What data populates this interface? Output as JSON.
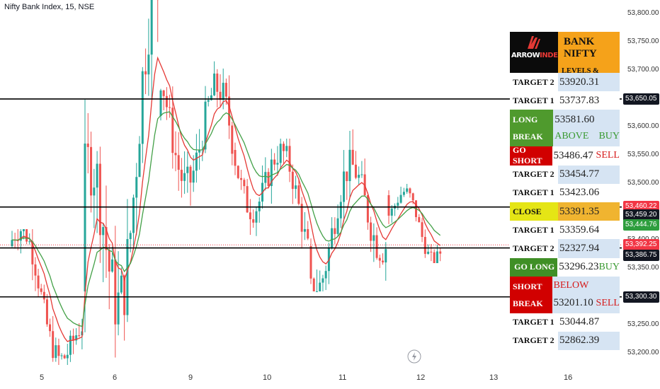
{
  "header": {
    "title": "Nifty Bank Index, 15, NSE"
  },
  "panel": {
    "logo_text_a": "ARROW",
    "logo_text_b": "INDEX",
    "title": "BANK NIFTY",
    "subtitle": "LEVELS & TARGETS",
    "rows": [
      {
        "label": "TARGET 2",
        "value": "53920.31"
      },
      {
        "label": "TARGET 1",
        "value": "53737.83"
      },
      {
        "label_a": "LONG",
        "label_b": "BREAK",
        "value": "53581.60",
        "word": "ABOVE",
        "signal": "BUY"
      },
      {
        "label": "GO SHORT",
        "value": "53486.47",
        "signal": "SELL"
      },
      {
        "label": "TARGET 2",
        "value": "53454.77"
      },
      {
        "label": "TARGET 1",
        "value": "53423.06"
      },
      {
        "label": "CLOSE",
        "value": "53391.35"
      },
      {
        "label": "TARGET 1",
        "value": "53359.64"
      },
      {
        "label": "TARGET 2",
        "value": "52327.94"
      },
      {
        "label": "GO LONG",
        "value": "53296.23",
        "signal": "BUY"
      },
      {
        "label_a": "SHORT",
        "label_b": "BREAK",
        "value": "53201.10",
        "word": "BELOW",
        "signal": "SELL"
      },
      {
        "label": "TARGET 1",
        "value": "53044.87"
      },
      {
        "label": "TARGET 2",
        "value": "52862.39"
      }
    ]
  },
  "price_tags": [
    {
      "text": "53,650.05",
      "bg": "#131722",
      "fg": "#ffffff",
      "price": 53650.05
    },
    {
      "text": "53,460.22",
      "bg": "#f23645",
      "fg": "#ffffff",
      "price": 53460.22
    },
    {
      "text": "53,459.20",
      "bg": "#131722",
      "fg": "#ffffff",
      "price": 53445.0
    },
    {
      "text": "53,444.76",
      "bg": "#2e9e3e",
      "fg": "#ffffff",
      "price": 53428.0
    },
    {
      "text": "53,392.25",
      "bg": "#f23645",
      "fg": "#ffffff",
      "price": 53392.25
    },
    {
      "text": "53,386.75",
      "bg": "#131722",
      "fg": "#ffffff",
      "price": 53374.0
    },
    {
      "text": "53,300.30",
      "bg": "#131722",
      "fg": "#ffffff",
      "price": 53300.3
    }
  ],
  "chart_data": {
    "type": "candlestick",
    "title": "Nifty Bank Index, 15, NSE",
    "y_ticks": [
      "53,800.00",
      "53,750.00",
      "53,700.00",
      "53,650.00",
      "53,600.00",
      "53,550.00",
      "53,500.00",
      "53,450.00",
      "53,400.00",
      "53,350.00",
      "53,300.00",
      "53,250.00",
      "53,200.00"
    ],
    "y_tick_values": [
      53800,
      53750,
      53700,
      53650,
      53600,
      53550,
      53500,
      53450,
      53400,
      53350,
      53300,
      53250,
      53200
    ],
    "ylim": [
      53175,
      53825
    ],
    "x_ticks": [
      "5",
      "6",
      "9",
      "10",
      "11",
      "12",
      "13",
      "16"
    ],
    "x_tick_days": [
      5,
      6,
      9,
      10,
      11,
      12,
      13,
      16
    ],
    "horizontal_levels": [
      53650.05,
      53459.2,
      53386.75,
      53300.3
    ],
    "colors": {
      "up": "#26a69a",
      "down": "#ef5350",
      "ema_fast": "#e53935",
      "ema_slow": "#43a047",
      "level": "#000000"
    },
    "sessions": [
      {
        "day": 5,
        "open": 53390,
        "high": 53420,
        "low": 53180,
        "close": 53195
      },
      {
        "day": 6,
        "open": 53310,
        "high": 53890,
        "low": 53190,
        "close": 53660
      },
      {
        "day": 9,
        "open": 53620,
        "high": 53740,
        "low": 53390,
        "close": 53560
      },
      {
        "day": 10,
        "open": 53560,
        "high": 53580,
        "low": 53310,
        "close": 53440
      },
      {
        "day": 11,
        "open": 53390,
        "high": 53640,
        "low": 53310,
        "close": 53480
      },
      {
        "day": 12,
        "open": 53480,
        "high": 53500,
        "low": 53360,
        "close": 53392
      }
    ]
  }
}
